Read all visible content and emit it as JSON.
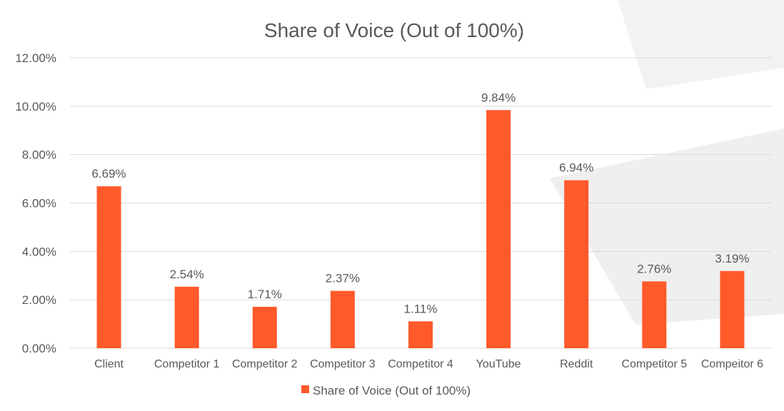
{
  "chart_data": {
    "type": "bar",
    "title": "Share of Voice (Out of 100%)",
    "categories": [
      "Client",
      "Competitor 1",
      "Competitor 2",
      "Competitor 3",
      "Competitor 4",
      "YouTube",
      "Reddit",
      "Competitor 5",
      "Compeitor 6"
    ],
    "series": [
      {
        "name": "Share of Voice (Out of 100%)",
        "values": [
          6.69,
          2.54,
          1.71,
          2.37,
          1.11,
          9.84,
          6.94,
          2.76,
          3.19
        ],
        "labels": [
          "6.69%",
          "2.54%",
          "1.71%",
          "2.37%",
          "1.11%",
          "9.84%",
          "6.94%",
          "2.76%",
          "3.19%"
        ],
        "color": "#ff5a2a"
      }
    ],
    "y_ticks": [
      "0.00%",
      "2.00%",
      "4.00%",
      "6.00%",
      "8.00%",
      "10.00%",
      "12.00%"
    ],
    "ylim": [
      0,
      12
    ],
    "grid": true,
    "legend_position": "bottom"
  }
}
